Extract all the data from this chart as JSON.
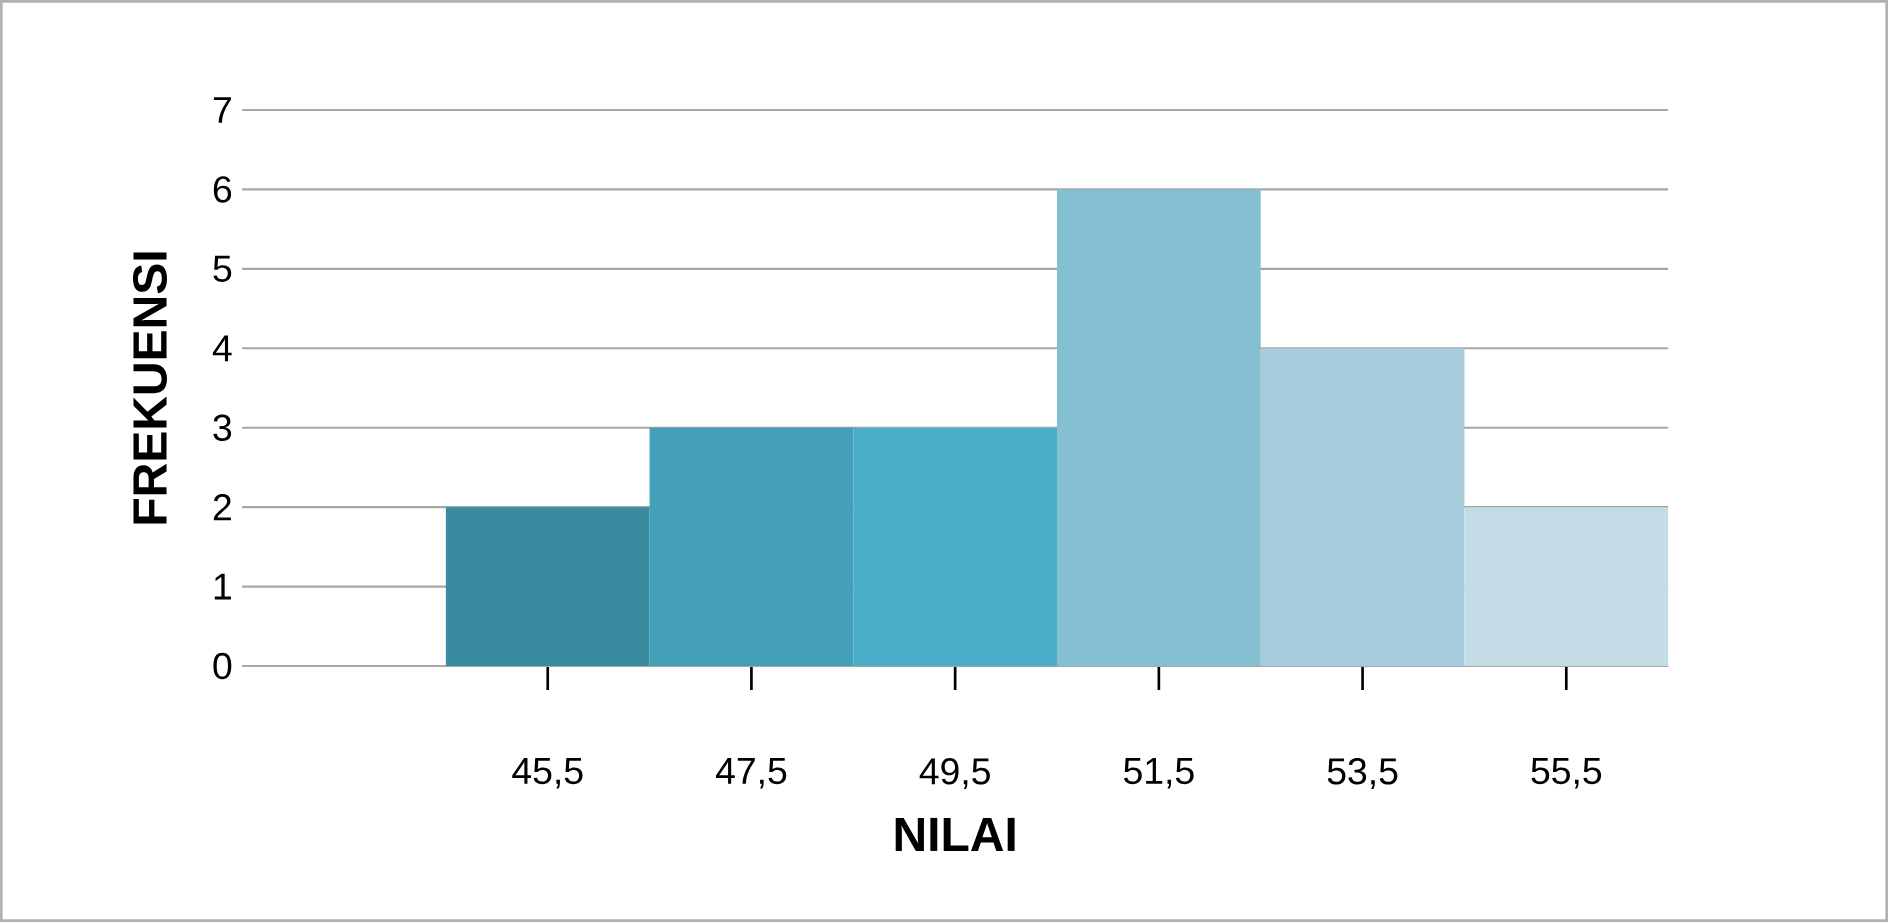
{
  "chart_data": {
    "type": "bar",
    "xlabel": "NILAI",
    "ylabel": "FREKUENSI",
    "categories": [
      null,
      "45,5",
      "47,5",
      "49,5",
      "51,5",
      "53,5",
      "55,5"
    ],
    "values": [
      null,
      2,
      3,
      3,
      6,
      4,
      2
    ],
    "colors": [
      "#3a8aa0",
      "#3a8aa0",
      "#449fb8",
      "#4aaec8",
      "#84bfd2",
      "#a7cddd",
      "#c3dce6"
    ],
    "ylim": [
      0,
      7
    ],
    "yticks": [
      0,
      1,
      2,
      3,
      4,
      5,
      6,
      7
    ],
    "grid": "y"
  }
}
